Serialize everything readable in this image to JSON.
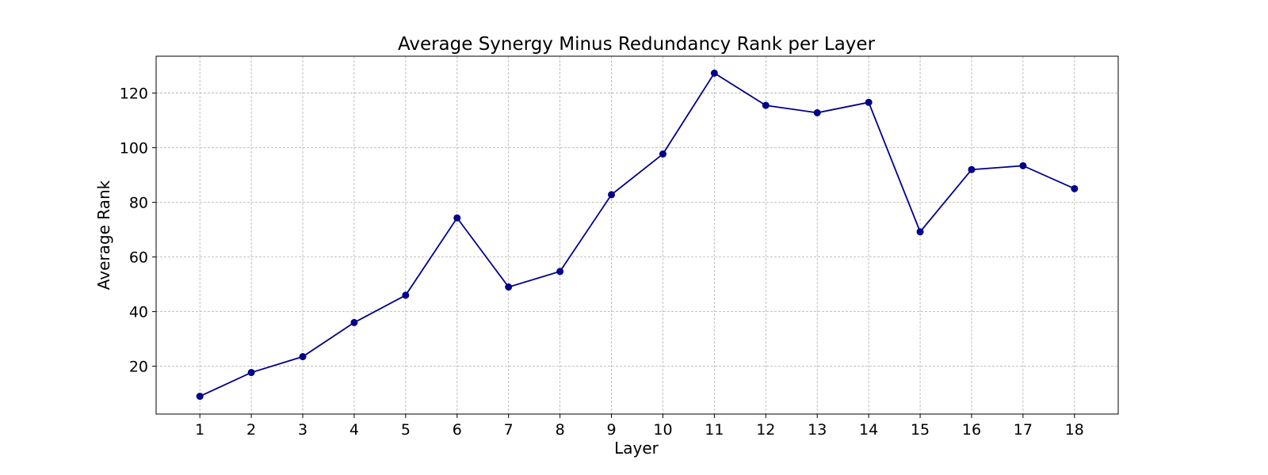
{
  "chart_data": {
    "type": "line",
    "title": "Average Synergy Minus Redundancy Rank per Layer",
    "xlabel": "Layer",
    "ylabel": "Average Rank",
    "x": [
      1,
      2,
      3,
      4,
      5,
      6,
      7,
      8,
      9,
      10,
      11,
      12,
      13,
      14,
      15,
      16,
      17,
      18
    ],
    "xlim": [
      0.15,
      18.85
    ],
    "ylim": [
      2.5,
      133.5
    ],
    "yticks": [
      20,
      40,
      60,
      80,
      100,
      120
    ],
    "grid": true,
    "series": [
      {
        "values": [
          9,
          17.7,
          23.5,
          36,
          46,
          74.3,
          49,
          54.7,
          82.8,
          97.7,
          127.3,
          115.5,
          112.8,
          116.6,
          69.2,
          92,
          93.4,
          85
        ],
        "color": "#00008b",
        "marker": "circle"
      }
    ]
  }
}
